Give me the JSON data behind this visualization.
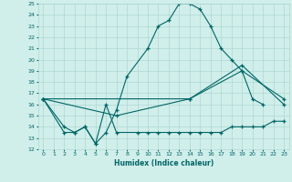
{
  "xlabel": "Humidex (Indice chaleur)",
  "xlim": [
    -0.5,
    23.5
  ],
  "ylim": [
    12,
    25
  ],
  "xticks": [
    0,
    1,
    2,
    3,
    4,
    5,
    6,
    7,
    8,
    9,
    10,
    11,
    12,
    13,
    14,
    15,
    16,
    17,
    18,
    19,
    20,
    21,
    22,
    23
  ],
  "yticks": [
    12,
    13,
    14,
    15,
    16,
    17,
    18,
    19,
    20,
    21,
    22,
    23,
    24,
    25
  ],
  "bg_color": "#d0eeea",
  "line_color": "#006666",
  "grid_color": "#b0d8d4",
  "lines": [
    {
      "x": [
        0,
        2,
        3,
        4,
        5,
        6,
        7,
        8,
        10,
        11,
        12,
        13,
        14,
        15,
        16,
        17,
        18,
        19,
        20,
        21
      ],
      "y": [
        16.5,
        13.5,
        13.5,
        14.0,
        12.5,
        13.5,
        15.5,
        18.5,
        21.0,
        23.0,
        23.5,
        25.0,
        25.0,
        24.5,
        23.0,
        21.0,
        20.0,
        19.0,
        16.5,
        16.0
      ]
    },
    {
      "x": [
        0,
        2,
        3,
        4,
        5,
        6,
        7,
        9,
        10,
        11,
        12,
        13,
        14,
        15,
        16,
        17,
        18,
        19,
        20,
        21,
        22,
        23
      ],
      "y": [
        16.5,
        14.0,
        13.5,
        14.0,
        12.5,
        16.0,
        13.5,
        13.5,
        13.5,
        13.5,
        13.5,
        13.5,
        13.5,
        13.5,
        13.5,
        13.5,
        14.0,
        14.0,
        14.0,
        14.0,
        14.5,
        14.5
      ]
    },
    {
      "x": [
        0,
        7,
        14,
        19,
        23
      ],
      "y": [
        16.5,
        15.0,
        16.5,
        19.0,
        16.5
      ]
    },
    {
      "x": [
        0,
        14,
        19,
        23
      ],
      "y": [
        16.5,
        16.5,
        19.5,
        16.0
      ]
    }
  ]
}
